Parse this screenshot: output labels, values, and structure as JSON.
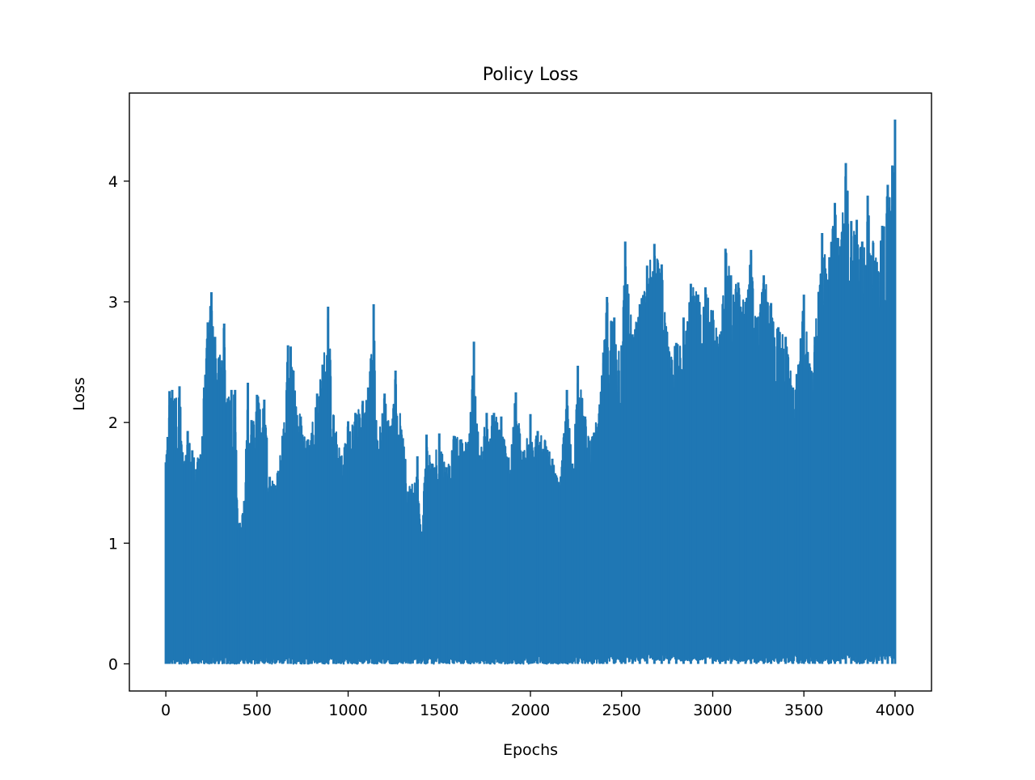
{
  "chart_data": {
    "type": "line",
    "title": "Policy Loss",
    "xlabel": "Epochs",
    "ylabel": "Loss",
    "xlim": [
      -200,
      4200
    ],
    "ylim": [
      -0.225,
      4.73
    ],
    "xticks": [
      0,
      500,
      1000,
      1500,
      2000,
      2500,
      3000,
      3500,
      4000
    ],
    "yticks": [
      0,
      1,
      2,
      3,
      4
    ],
    "grid": false,
    "legend": "none",
    "color": "#1f77b4",
    "series_summary": {
      "n_points": 4000,
      "min_value": 0.0,
      "note_values": "dense oscillating series; upper envelope listed below"
    },
    "upper_envelope": {
      "x": [
        0,
        10,
        20,
        35,
        50,
        75,
        100,
        120,
        145,
        180,
        210,
        230,
        250,
        270,
        290,
        320,
        340,
        360,
        380,
        400,
        430,
        450,
        470,
        500,
        540,
        570,
        600,
        640,
        670,
        685,
        700,
        740,
        780,
        830,
        860,
        890,
        920,
        960,
        1000,
        1040,
        1080,
        1110,
        1140,
        1160,
        1200,
        1230,
        1260,
        1300,
        1340,
        1380,
        1400,
        1430,
        1460,
        1500,
        1540,
        1580,
        1620,
        1660,
        1690,
        1720,
        1760,
        1800,
        1840,
        1880,
        1920,
        1960,
        2000,
        2040,
        2080,
        2120,
        2160,
        2200,
        2230,
        2260,
        2300,
        2340,
        2380,
        2400,
        2420,
        2460,
        2500,
        2520,
        2560,
        2600,
        2640,
        2680,
        2720,
        2760,
        2800,
        2840,
        2880,
        2920,
        2960,
        3000,
        3040,
        3070,
        3100,
        3140,
        3180,
        3210,
        3240,
        3280,
        3320,
        3360,
        3400,
        3440,
        3470,
        3500,
        3530,
        3560,
        3600,
        3640,
        3670,
        3700,
        3730,
        3760,
        3790,
        3820,
        3850,
        3880,
        3900,
        3930,
        3960,
        3985,
        4000
      ],
      "values": [
        1.67,
        1.88,
        2.26,
        2.27,
        2.2,
        2.3,
        1.66,
        1.93,
        1.77,
        1.7,
        2.29,
        2.83,
        3.08,
        2.71,
        2.53,
        2.82,
        2.2,
        2.27,
        2.27,
        1.12,
        1.35,
        2.33,
        2.02,
        2.23,
        2.19,
        1.55,
        1.48,
        1.89,
        2.64,
        2.63,
        2.43,
        2.05,
        1.86,
        2.24,
        2.48,
        2.96,
        2.06,
        1.72,
        2.01,
        2.08,
        2.18,
        2.29,
        2.98,
        1.85,
        2.24,
        1.97,
        2.43,
        1.87,
        1.45,
        1.72,
        1.08,
        1.9,
        1.66,
        1.91,
        1.63,
        1.89,
        1.86,
        1.84,
        2.67,
        1.72,
        2.08,
        2.08,
        2.05,
        1.71,
        2.25,
        1.76,
        2.07,
        1.93,
        1.85,
        1.7,
        1.48,
        2.27,
        1.66,
        2.47,
        2.05,
        1.88,
        2.15,
        2.58,
        3.04,
        2.87,
        2.64,
        3.5,
        2.73,
        2.98,
        3.3,
        3.48,
        3.31,
        2.59,
        2.66,
        2.87,
        3.15,
        3.06,
        3.12,
        2.93,
        2.73,
        3.44,
        3.22,
        3.16,
        3.0,
        3.43,
        2.87,
        3.22,
        2.99,
        2.79,
        2.71,
        2.29,
        2.48,
        3.06,
        2.49,
        2.71,
        3.57,
        3.37,
        3.82,
        3.46,
        4.15,
        3.67,
        3.68,
        3.5,
        3.88,
        3.49,
        3.33,
        3.63,
        3.97,
        4.13,
        4.51
      ]
    },
    "lower_envelope": {
      "x": [
        0,
        2400,
        2700,
        3640,
        3740,
        3800,
        4000
      ],
      "values": [
        0.0,
        0.0,
        0.03,
        0.0,
        0.05,
        0.0,
        0.05
      ]
    }
  }
}
